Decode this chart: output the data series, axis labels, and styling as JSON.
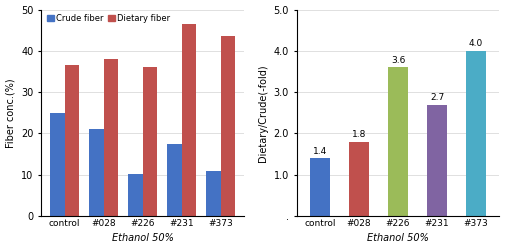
{
  "left": {
    "categories": [
      "control",
      "#028",
      "#226",
      "#231",
      "#373"
    ],
    "crude_fiber": [
      25.0,
      21.0,
      10.3,
      17.5,
      11.0
    ],
    "dietary_fiber": [
      36.5,
      38.0,
      36.0,
      46.5,
      43.5
    ],
    "crude_color": "#4472c4",
    "dietary_color": "#c0504d",
    "ylabel": "Fiber conc.(%)",
    "xlabel": "Ethanol 50%",
    "ylim": [
      0,
      50
    ],
    "yticks": [
      0,
      10,
      20,
      30,
      40,
      50
    ],
    "legend_labels": [
      "Crude fiber",
      "Dietary fiber"
    ]
  },
  "right": {
    "categories": [
      "control",
      "#028",
      "#226",
      "#231",
      "#373"
    ],
    "values": [
      1.4,
      1.8,
      3.6,
      2.7,
      4.0
    ],
    "bar_colors": [
      "#4472c4",
      "#c0504d",
      "#9bbb59",
      "#8064a2",
      "#4bacc6"
    ],
    "ylabel": "Dietary/Crude(-fold)",
    "xlabel": "Ethanol 50%",
    "ylim": [
      0,
      5.0
    ],
    "yticks": [
      0,
      1.0,
      2.0,
      3.0,
      4.0,
      5.0
    ],
    "yticklabels": [
      ".",
      "1.0",
      "2.0",
      "3.0",
      "4.0",
      "5.0"
    ],
    "labels": [
      "1.4",
      "1.8",
      "3.6",
      "2.7",
      "4.0"
    ]
  }
}
